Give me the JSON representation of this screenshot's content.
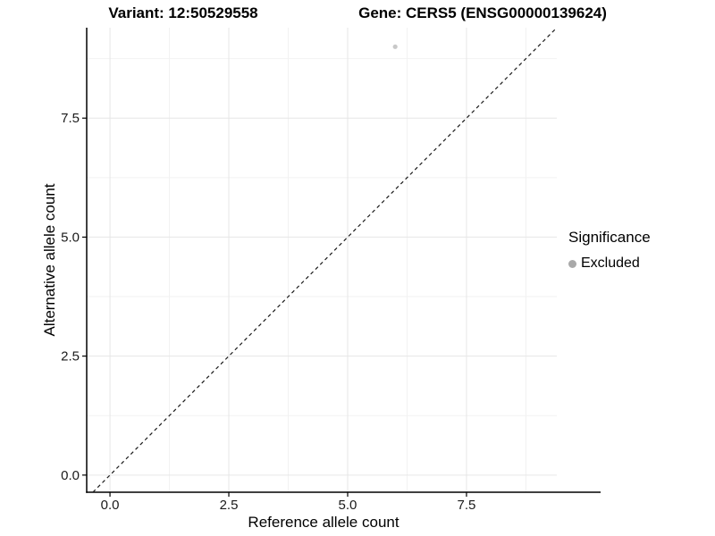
{
  "chart_data": {
    "type": "scatter",
    "title_left": "Variant: 12:50529558",
    "title_right": "Gene: CERS5 (ENSG00000139624)",
    "xlabel": "Reference allele count",
    "ylabel": "Alternative allele count",
    "x_ticks": {
      "values": [
        0,
        2.5,
        5,
        7.5
      ],
      "labels": [
        "0.0",
        "2.5",
        "5.0",
        "7.5"
      ]
    },
    "y_ticks": {
      "values": [
        0,
        2.5,
        5,
        7.5
      ],
      "labels": [
        "0.0",
        "2.5",
        "5.0",
        "7.5"
      ]
    },
    "minor_step": 1.25,
    "xlim": [
      -0.49,
      9.4
    ],
    "ylim": [
      -0.36,
      9.4
    ],
    "grid": "major-and-minor",
    "points": [
      {
        "x": 6,
        "y": 9,
        "series": "Excluded",
        "color": "#c8c8c8"
      }
    ],
    "reference_line": {
      "slope": 1,
      "intercept": 0,
      "style": "dashed",
      "color": "#1a1a1a"
    },
    "legend": {
      "position": "right",
      "title": "Significance",
      "entries": [
        {
          "label": "Excluded",
          "color": "#a9a9a9"
        }
      ]
    },
    "colors": {
      "grid_major": "#e6e6e6",
      "grid_minor": "#f2f2f2",
      "axis_line": "#000000",
      "tick_text": "#1a1a1a"
    }
  }
}
